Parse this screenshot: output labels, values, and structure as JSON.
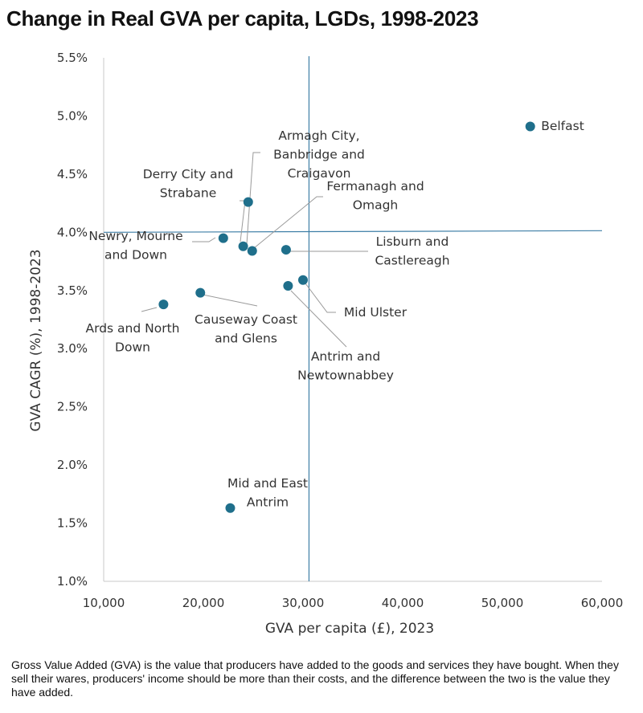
{
  "chart_data": {
    "type": "scatter",
    "title": "Change in Real GVA per capita, LGDs, 1998-2023",
    "xlabel": "GVA per capita (£), 2023",
    "ylabel": "GVA CAGR (%), 1998-2023",
    "xlim": [
      10000,
      60000
    ],
    "ylim": [
      1.0,
      5.5
    ],
    "x_ticks": [
      "10,000",
      "20,000",
      "30,000",
      "40,000",
      "50,000",
      "60,000"
    ],
    "y_ticks": [
      "1.0%",
      "1.5%",
      "2.0%",
      "2.5%",
      "3.0%",
      "3.5%",
      "4.0%",
      "4.5%",
      "5.0%",
      "5.5%"
    ],
    "reference_lines": {
      "x": 30600,
      "y": 4.0
    },
    "marker_color": "#1f6f8b",
    "line_color": "#3d7ea6",
    "points": [
      {
        "name": "Belfast",
        "label": [
          "Belfast"
        ],
        "x": 52800,
        "y": 4.91
      },
      {
        "name": "Armagh City, Banbridge and Craigavon",
        "label": [
          "Armagh City,",
          "Banbridge and",
          "Craigavon"
        ],
        "x": 24500,
        "y": 4.26
      },
      {
        "name": "Derry City and Strabane",
        "label": [
          "Derry City and",
          "Strabane"
        ],
        "x": 24000,
        "y": 3.88
      },
      {
        "name": "Fermanagh and Omagh",
        "label": [
          "Fermanagh and",
          "Omagh"
        ],
        "x": 24900,
        "y": 3.84
      },
      {
        "name": "Newry, Mourne and Down",
        "label": [
          "Newry, Mourne",
          "and Down"
        ],
        "x": 22000,
        "y": 3.95
      },
      {
        "name": "Lisburn and Castlereagh",
        "label": [
          "Lisburn and",
          "Castlereagh"
        ],
        "x": 28300,
        "y": 3.85
      },
      {
        "name": "Mid Ulster",
        "label": [
          "Mid Ulster"
        ],
        "x": 30000,
        "y": 3.59
      },
      {
        "name": "Antrim and Newtownabbey",
        "label": [
          "Antrim and",
          "Newtownabbey"
        ],
        "x": 28500,
        "y": 3.54
      },
      {
        "name": "Causeway Coast and Glens",
        "label": [
          "Causeway Coast",
          "and Glens"
        ],
        "x": 19700,
        "y": 3.48
      },
      {
        "name": "Ards and North Down",
        "label": [
          "Ards and North",
          "Down"
        ],
        "x": 16000,
        "y": 3.38
      },
      {
        "name": "Mid and East Antrim",
        "label": [
          "Mid and East",
          "Antrim"
        ],
        "x": 22700,
        "y": 1.63
      }
    ]
  },
  "footnote": "Gross Value Added (GVA) is the value that producers have added to the goods and services they have bought. When they sell their wares, producers' income should be more than their costs, and the difference between the two is the value they have added."
}
